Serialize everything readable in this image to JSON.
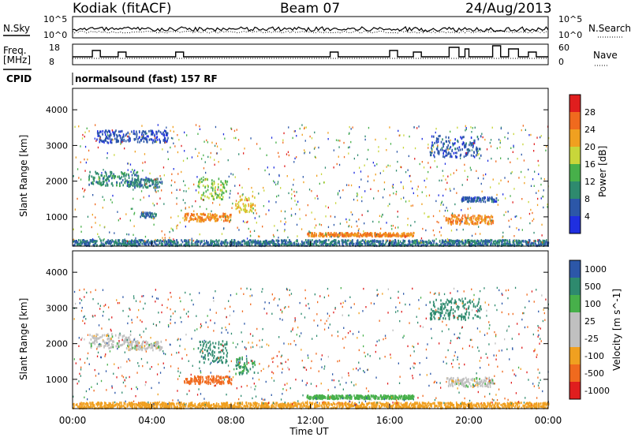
{
  "header": {
    "station": "Kodiak (fitACF)",
    "beam": "Beam 07",
    "date": "24/Aug/2013"
  },
  "top_panels": {
    "nsky_label": "N.Sky",
    "nsearch_label": "N.Search",
    "noise_ticks_left": [
      "10^5",
      "10^0"
    ],
    "noise_ticks_right": [
      "10^5",
      "10^0"
    ],
    "freq_label_1": "Freq.",
    "freq_label_2": "[MHz]",
    "freq_ticks": [
      "18",
      "8"
    ],
    "nave_label": "Nave",
    "nave_ticks": [
      "60",
      "0"
    ],
    "cpid_label": "CPID",
    "cpid_text": "normalsound (fast) 157 RF"
  },
  "time_axis": {
    "label": "Time UT",
    "ticks": [
      "00:00",
      "04:00",
      "08:00",
      "12:00",
      "16:00",
      "20:00",
      "00:00"
    ]
  },
  "colors": {
    "power_scale": [
      "#1f2fe0",
      "#2c57a8",
      "#2e8a6e",
      "#47b04a",
      "#c8d63a",
      "#f0a020",
      "#f06a1e",
      "#e01e1e"
    ],
    "velocity_scale": [
      "#e01e1e",
      "#f06a1e",
      "#f0a020",
      "#c0c0c0",
      "#c0c0c0",
      "#47b04a",
      "#2e8a6e",
      "#2c57a8"
    ]
  },
  "chart_data": [
    {
      "type": "heatmap",
      "title": "Power",
      "ylabel": "Slant Range [km]",
      "xlabel": "Time UT",
      "ylim": [
        180,
        4600
      ],
      "xlim": [
        0,
        24
      ],
      "y_ticks": [
        "1000",
        "2000",
        "3000",
        "4000"
      ],
      "colorbar": {
        "label": "Power [dB]",
        "ticks": [
          "4",
          "8",
          "12",
          "16",
          "20",
          "24",
          "28"
        ],
        "range": [
          0,
          32
        ]
      },
      "regions": [
        {
          "t": [
            0.8,
            3.3
          ],
          "r": [
            1900,
            2300
          ],
          "value": 10
        },
        {
          "t": [
            2.8,
            4.5
          ],
          "r": [
            1850,
            2100
          ],
          "value": 9
        },
        {
          "t": [
            5.6,
            8.0
          ],
          "r": [
            900,
            1120
          ],
          "value": 24
        },
        {
          "t": [
            6.3,
            7.8
          ],
          "r": [
            1500,
            2100
          ],
          "value": 16
        },
        {
          "t": [
            8.2,
            9.2
          ],
          "r": [
            1150,
            1650
          ],
          "value": 20
        },
        {
          "t": [
            3.4,
            4.2
          ],
          "r": [
            1000,
            1150
          ],
          "value": 8
        },
        {
          "t": [
            0,
            24
          ],
          "r": [
            220,
            380
          ],
          "value": 8
        },
        {
          "t": [
            11.8,
            17.2
          ],
          "r": [
            480,
            580
          ],
          "value": 24
        },
        {
          "t": [
            18.8,
            21.2
          ],
          "r": [
            820,
            1080
          ],
          "value": 24
        },
        {
          "t": [
            19.6,
            21.4
          ],
          "r": [
            1450,
            1580
          ],
          "value": 6
        },
        {
          "t": [
            1.2,
            4.8
          ],
          "r": [
            3100,
            3450
          ],
          "value": 5
        },
        {
          "t": [
            18.0,
            20.6
          ],
          "r": [
            2700,
            3300
          ],
          "value": 6
        }
      ]
    },
    {
      "type": "heatmap",
      "title": "Velocity",
      "ylabel": "Slant Range [km]",
      "xlabel": "Time UT",
      "ylim": [
        180,
        4600
      ],
      "xlim": [
        0,
        24
      ],
      "y_ticks": [
        "1000",
        "2000",
        "3000",
        "4000"
      ],
      "colorbar": {
        "label": "Velocity [m s^-1]",
        "ticks": [
          "1000",
          "500",
          "100",
          "25",
          "-25",
          "-100",
          "-500",
          "-1000"
        ]
      },
      "regions": [
        {
          "t": [
            0.8,
            3.3
          ],
          "r": [
            1900,
            2300
          ],
          "value": 0
        },
        {
          "t": [
            2.8,
            4.5
          ],
          "r": [
            1850,
            2100
          ],
          "value": 0
        },
        {
          "t": [
            5.6,
            8.0
          ],
          "r": [
            900,
            1120
          ],
          "value": -150
        },
        {
          "t": [
            6.3,
            7.8
          ],
          "r": [
            1500,
            2100
          ],
          "value": 300
        },
        {
          "t": [
            8.2,
            9.2
          ],
          "r": [
            1150,
            1650
          ],
          "value": 100
        },
        {
          "t": [
            0,
            24
          ],
          "r": [
            220,
            380
          ],
          "value": -60
        },
        {
          "t": [
            11.8,
            17.2
          ],
          "r": [
            480,
            580
          ],
          "value": 60
        },
        {
          "t": [
            18.8,
            21.2
          ],
          "r": [
            820,
            1080
          ],
          "value": 0
        },
        {
          "t": [
            18.0,
            20.6
          ],
          "r": [
            2700,
            3300
          ],
          "value": 400
        }
      ]
    }
  ]
}
